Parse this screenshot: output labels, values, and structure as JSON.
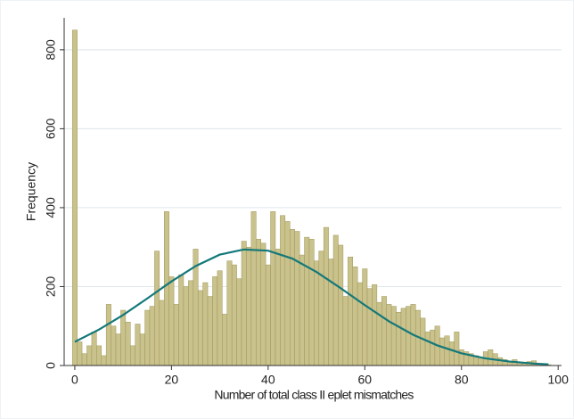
{
  "chart_data": {
    "type": "histogram",
    "ylabel": "Frequency",
    "xlabel": "Number of total class II eplet mismatches",
    "color": "#c9c28c",
    "edgecolor": "#9e9658",
    "bins": [
      -0.5,
      0.5,
      1.5,
      2.5,
      3.5,
      4.5,
      5.5,
      6.5,
      7.5,
      8.5,
      9.5,
      10.5,
      11.5,
      12.5,
      13.5,
      14.5,
      15.5,
      16.5,
      17.5,
      18.5,
      19.5,
      20.5,
      21.5,
      22.5,
      23.5,
      24.5,
      25.5,
      26.5,
      27.5,
      28.5,
      29.5,
      30.5,
      31.5,
      32.5,
      33.5,
      34.5,
      35.5,
      36.5,
      37.5,
      38.5,
      39.5,
      40.5,
      41.5,
      42.5,
      43.5,
      44.5,
      45.5,
      46.5,
      47.5,
      48.5,
      49.5,
      50.5,
      51.5,
      52.5,
      53.5,
      54.5,
      55.5,
      56.5,
      57.5,
      58.5,
      59.5,
      60.5,
      61.5,
      62.5,
      63.5,
      64.5,
      65.5,
      66.5,
      67.5,
      68.5,
      69.5,
      70.5,
      71.5,
      72.5,
      73.5,
      74.5,
      75.5,
      76.5,
      77.5,
      78.5,
      79.5,
      80.5,
      81.5,
      82.5,
      83.5,
      84.5,
      85.5,
      86.5,
      87.5,
      88.5,
      89.5,
      90.5,
      91.5,
      92.5,
      93.5,
      94.5,
      95.5,
      96.5,
      97.5,
      98.5
    ],
    "values": [
      850,
      60,
      30,
      50,
      85,
      50,
      25,
      155,
      100,
      80,
      140,
      110,
      50,
      105,
      80,
      140,
      150,
      290,
      165,
      390,
      225,
      155,
      230,
      200,
      215,
      295,
      190,
      210,
      175,
      225,
      240,
      130,
      265,
      255,
      220,
      315,
      300,
      390,
      320,
      310,
      255,
      390,
      295,
      380,
      365,
      345,
      340,
      280,
      325,
      320,
      265,
      290,
      350,
      270,
      330,
      305,
      175,
      275,
      250,
      210,
      245,
      195,
      205,
      160,
      175,
      155,
      150,
      135,
      145,
      150,
      155,
      140,
      120,
      85,
      90,
      100,
      70,
      75,
      60,
      85,
      40,
      35,
      30,
      25,
      20,
      35,
      40,
      30,
      20,
      15,
      10,
      15,
      8,
      5,
      10,
      12,
      5,
      3,
      2
    ],
    "curve": {
      "color": "#14787a",
      "x": [
        0,
        5,
        10,
        15,
        20,
        25,
        30,
        35,
        40,
        45,
        50,
        55,
        60,
        65,
        70,
        75,
        80,
        85,
        90,
        95,
        98
      ],
      "values": [
        60,
        91,
        128,
        170,
        213,
        252,
        281,
        294,
        291,
        271,
        237,
        196,
        153,
        112,
        78,
        51,
        31,
        18,
        10,
        5,
        3
      ]
    },
    "xlim": [
      -2.2,
      100.7
    ],
    "ylim": [
      0,
      881
    ],
    "xticks": [
      0,
      20,
      40,
      60,
      80,
      100
    ],
    "yticks": [
      0,
      200,
      400,
      600,
      800
    ],
    "grid": true
  }
}
